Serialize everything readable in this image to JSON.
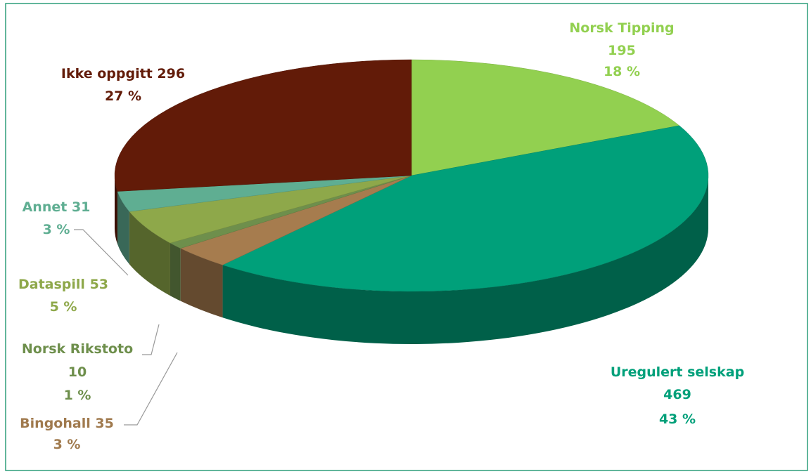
{
  "chart_data": {
    "type": "pie",
    "categories": [
      "Norsk Tipping",
      "Uregulert selskap",
      "Bingohall",
      "Norsk Rikstoto",
      "Dataspill",
      "Annet",
      "Ikke oppgitt"
    ],
    "values": [
      195,
      469,
      35,
      10,
      53,
      31,
      296
    ],
    "percent_labels": [
      "18 %",
      "43 %",
      "3 %",
      "1 %",
      "5 %",
      "3 %",
      "27 %"
    ],
    "colors": [
      "#92d050",
      "#00a07a",
      "#a67c4e",
      "#6e8f4c",
      "#8ea84a",
      "#5fae92",
      "#621b08"
    ],
    "label_colors": [
      "#92d050",
      "#00a07a",
      "#a07a4e",
      "#6e8f4c",
      "#8ea84a",
      "#5fae92",
      "#621b08"
    ]
  }
}
